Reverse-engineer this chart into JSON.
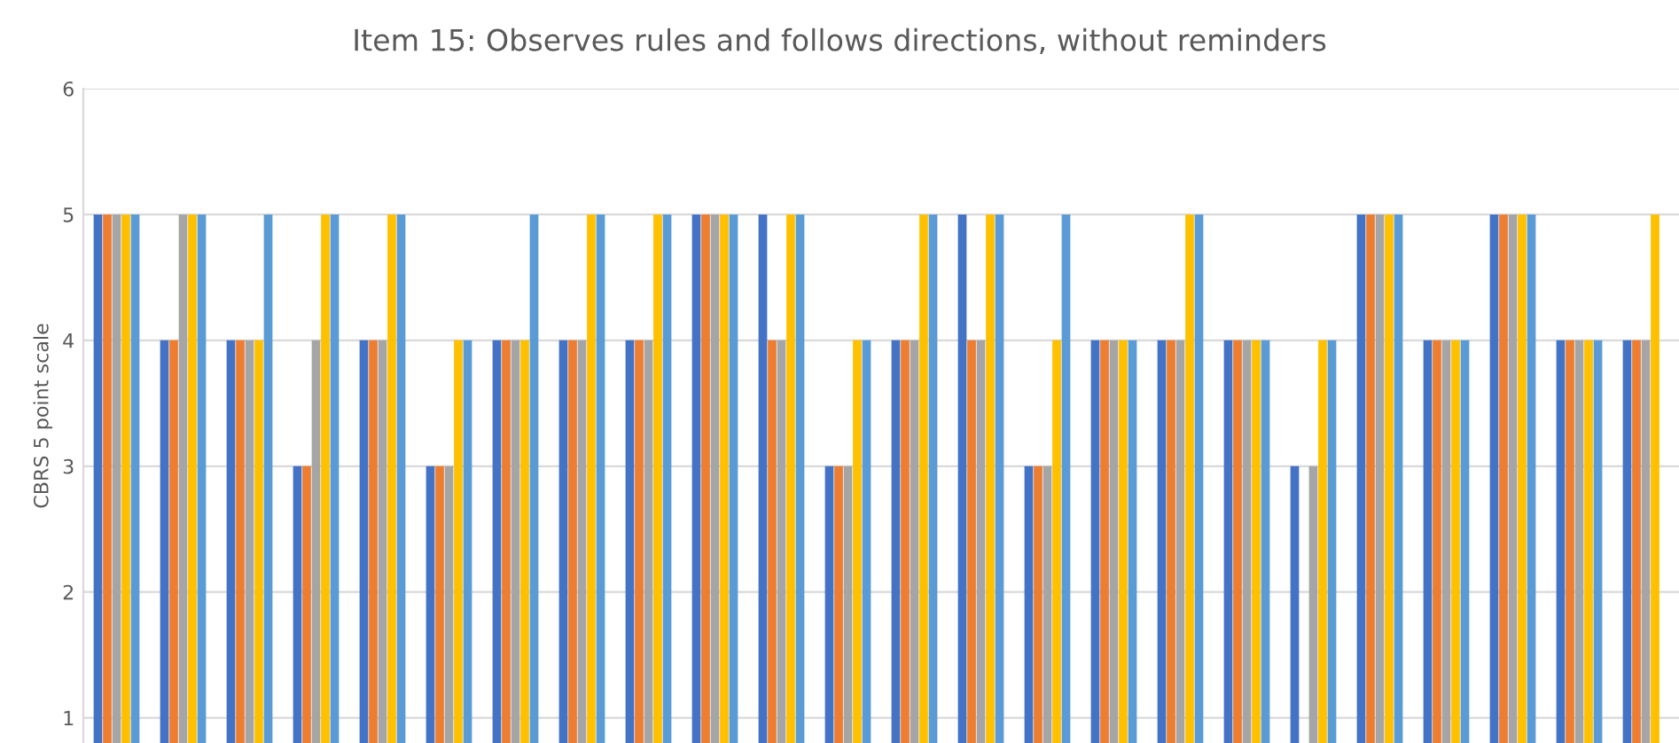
{
  "chart_data": {
    "type": "bar",
    "title": "Item 15: Observes rules and follows directions, without reminders",
    "ylabel": "CBRS 5 point scale",
    "categories": [
      null,
      null,
      null,
      null,
      null,
      null,
      null,
      null,
      null,
      null,
      null,
      null,
      null,
      null,
      null,
      null,
      null,
      null,
      null,
      null,
      null,
      null,
      null,
      null
    ],
    "series": [
      {
        "color": "#4472c4",
        "values": [
          5,
          4,
          4,
          3,
          4,
          3,
          4,
          4,
          4,
          5,
          5,
          3,
          4,
          5,
          3,
          4,
          4,
          4,
          3,
          5,
          4,
          5,
          4,
          4
        ]
      },
      {
        "color": "#ed7d31",
        "values": [
          5,
          4,
          4,
          3,
          4,
          3,
          4,
          4,
          4,
          5,
          4,
          3,
          4,
          4,
          3,
          4,
          4,
          4,
          null,
          5,
          4,
          5,
          4,
          4
        ]
      },
      {
        "color": "#a5a5a5",
        "values": [
          5,
          5,
          4,
          4,
          4,
          3,
          4,
          4,
          4,
          5,
          4,
          3,
          4,
          4,
          3,
          4,
          4,
          4,
          3,
          5,
          4,
          5,
          4,
          4
        ]
      },
      {
        "color": "#ffc000",
        "values": [
          5,
          5,
          4,
          5,
          5,
          4,
          4,
          5,
          5,
          5,
          5,
          4,
          5,
          5,
          4,
          4,
          5,
          4,
          4,
          5,
          4,
          5,
          4,
          5
        ]
      },
      {
        "color": "#5b9bd5",
        "values": [
          5,
          5,
          5,
          5,
          5,
          4,
          5,
          5,
          5,
          5,
          5,
          4,
          5,
          5,
          5,
          4,
          5,
          4,
          4,
          5,
          4,
          5,
          4,
          null
        ]
      }
    ],
    "ylim": [
      0.8,
      6
    ],
    "yticks": [
      1,
      2,
      3,
      4,
      5,
      6
    ],
    "grid": "y",
    "tick_labels": "y"
  }
}
